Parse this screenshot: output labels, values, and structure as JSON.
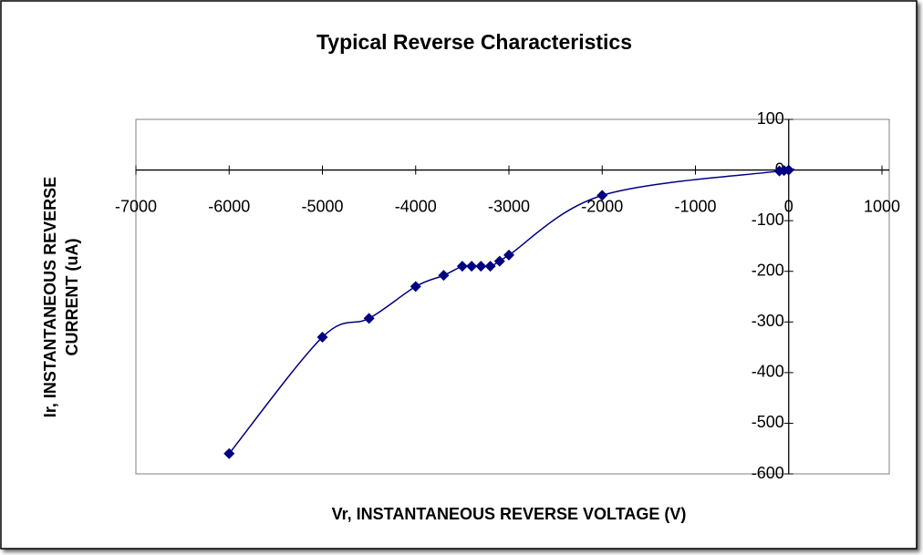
{
  "chart_data": {
    "type": "scatter",
    "title": "Typical Reverse Characteristics",
    "xlabel": "Vr, INSTANTANEOUS REVERSE VOLTAGE (V)",
    "ylabel": [
      "Ir, INSTANTANEOUS REVERSE",
      "CURRENT (uA)"
    ],
    "series": [
      {
        "color": "#000080",
        "x": [
          -6000,
          -5000,
          -4500,
          -4000,
          -3700,
          -3500,
          -3400,
          -3300,
          -3200,
          -3100,
          -3000,
          -2000,
          -100,
          -50,
          0
        ],
        "values": [
          -560,
          -330,
          -293,
          -230,
          -208,
          -190,
          -190,
          -190,
          -190,
          -180,
          -168,
          -50,
          -2,
          -1,
          0
        ]
      }
    ],
    "xlim": [
      -7000,
      1000
    ],
    "xticks": [
      -7000,
      -6000,
      -5000,
      -4000,
      -3000,
      -2000,
      -1000,
      0,
      1000
    ],
    "ylim": [
      -600,
      100
    ],
    "yticks": [
      -600,
      -500,
      -400,
      -300,
      -200,
      -100,
      0,
      100
    ],
    "smooth": true,
    "grid": false
  }
}
